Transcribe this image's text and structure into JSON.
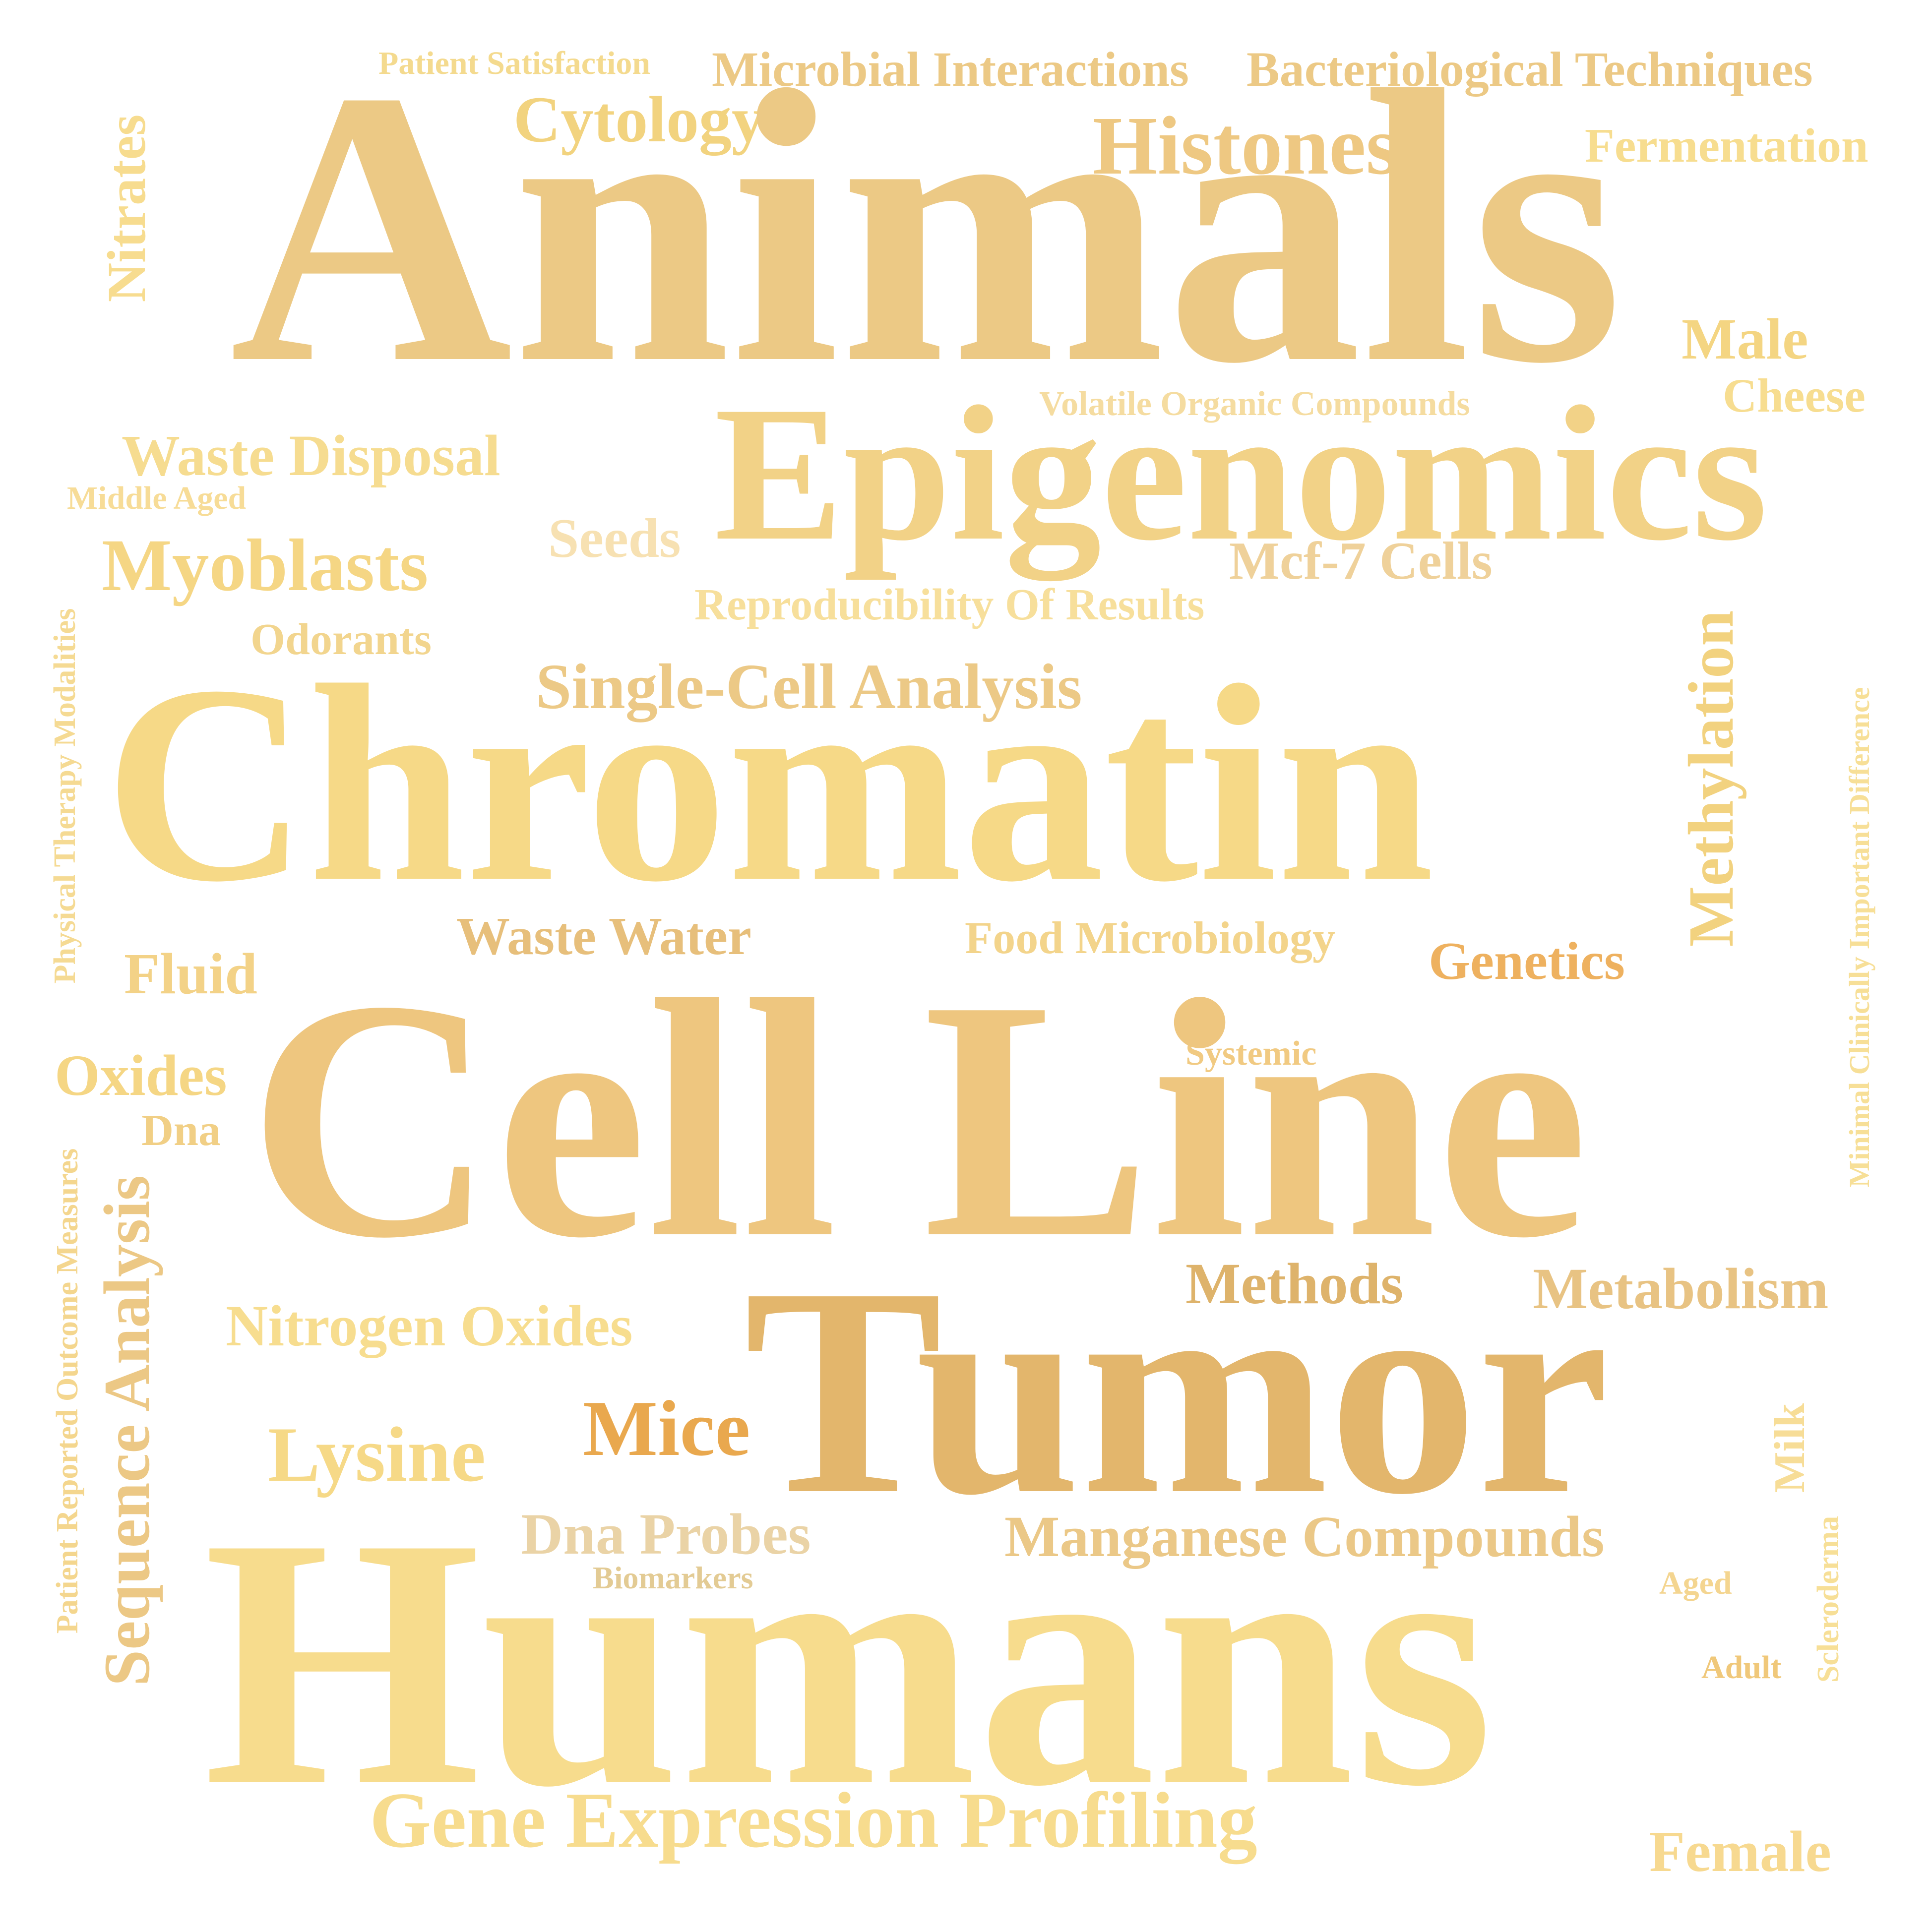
{
  "words": [
    {
      "text": "Patient Satisfaction",
      "color": "#f4da8e"
    },
    {
      "text": "Microbial Interactions",
      "color": "#ecc985"
    },
    {
      "text": "Bacteriological Techniques",
      "color": "#ecc985"
    },
    {
      "text": "Cytology",
      "color": "#f2d37f"
    },
    {
      "text": "Histones",
      "color": "#eec882"
    },
    {
      "text": "Fermentation",
      "color": "#f7dd8f"
    },
    {
      "text": "Animals",
      "color": "#ecc985"
    },
    {
      "text": "Nitrates",
      "color": "#f7dc8f"
    },
    {
      "text": "Male",
      "color": "#f4d582"
    },
    {
      "text": "Cheese",
      "color": "#f7dd90"
    },
    {
      "text": "Volatile Organic Compounds",
      "color": "#f5dca0"
    },
    {
      "text": "Epigenomics",
      "color": "#f2d287"
    },
    {
      "text": "Waste Disposal",
      "color": "#f6dc90"
    },
    {
      "text": "Middle Aged",
      "color": "#f7dc97"
    },
    {
      "text": "Seeds",
      "color": "#f7e1b2"
    },
    {
      "text": "Mcf-7 Cells",
      "color": "#efd19a"
    },
    {
      "text": "Myoblasts",
      "color": "#f5d684"
    },
    {
      "text": "Reproducibility Of Results",
      "color": "#f7df9b"
    },
    {
      "text": "Odorants",
      "color": "#f2d58e"
    },
    {
      "text": "Single-Cell Analysis",
      "color": "#ecc986"
    },
    {
      "text": "Methylation",
      "color": "#f2d27f"
    },
    {
      "text": "Physical Therapy Modalities",
      "color": "#f5da93"
    },
    {
      "text": "Minimal Clinically Important Difference",
      "color": "#f7df97"
    },
    {
      "text": "Chromatin",
      "color": "#f6d987"
    },
    {
      "text": "Waste Water",
      "color": "#e7bf7b"
    },
    {
      "text": "Food Microbiology",
      "color": "#f3d48b"
    },
    {
      "text": "Genetics",
      "color": "#eeb15f"
    },
    {
      "text": "Fluid",
      "color": "#f3d287"
    },
    {
      "text": "Systemic",
      "color": "#f1ca82"
    },
    {
      "text": "Oxides",
      "color": "#f5d684"
    },
    {
      "text": "Dna",
      "color": "#f1cf85"
    },
    {
      "text": "Cell Line",
      "color": "#eec67f"
    },
    {
      "text": "Patient Reported Outcome Measures",
      "color": "#f4d68e"
    },
    {
      "text": "Sequence Analysis",
      "color": "#ecc885"
    },
    {
      "text": "Methods",
      "color": "#deb36b"
    },
    {
      "text": "Metabolism",
      "color": "#e8c383"
    },
    {
      "text": "Nitrogen Oxides",
      "color": "#f7dd8f"
    },
    {
      "text": "Tumor",
      "color": "#e3b66c"
    },
    {
      "text": "Mice",
      "color": "#e9a84e"
    },
    {
      "text": "Lysine",
      "color": "#f6d987"
    },
    {
      "text": "Milk",
      "color": "#f7dd97"
    },
    {
      "text": "Scleroderma",
      "color": "#f7df97"
    },
    {
      "text": "Dna Probes",
      "color": "#ead3a6"
    },
    {
      "text": "Biomarkers",
      "color": "#e3cb94"
    },
    {
      "text": "Manganese Compounds",
      "color": "#ebc887"
    },
    {
      "text": "Aged",
      "color": "#f4d590"
    },
    {
      "text": "Humans",
      "color": "#f7dc8d"
    },
    {
      "text": "Adult",
      "color": "#f0c87a"
    },
    {
      "text": "Gene Expression Profiling",
      "color": "#f7dc8e"
    },
    {
      "text": "Female",
      "color": "#f7d990"
    }
  ]
}
